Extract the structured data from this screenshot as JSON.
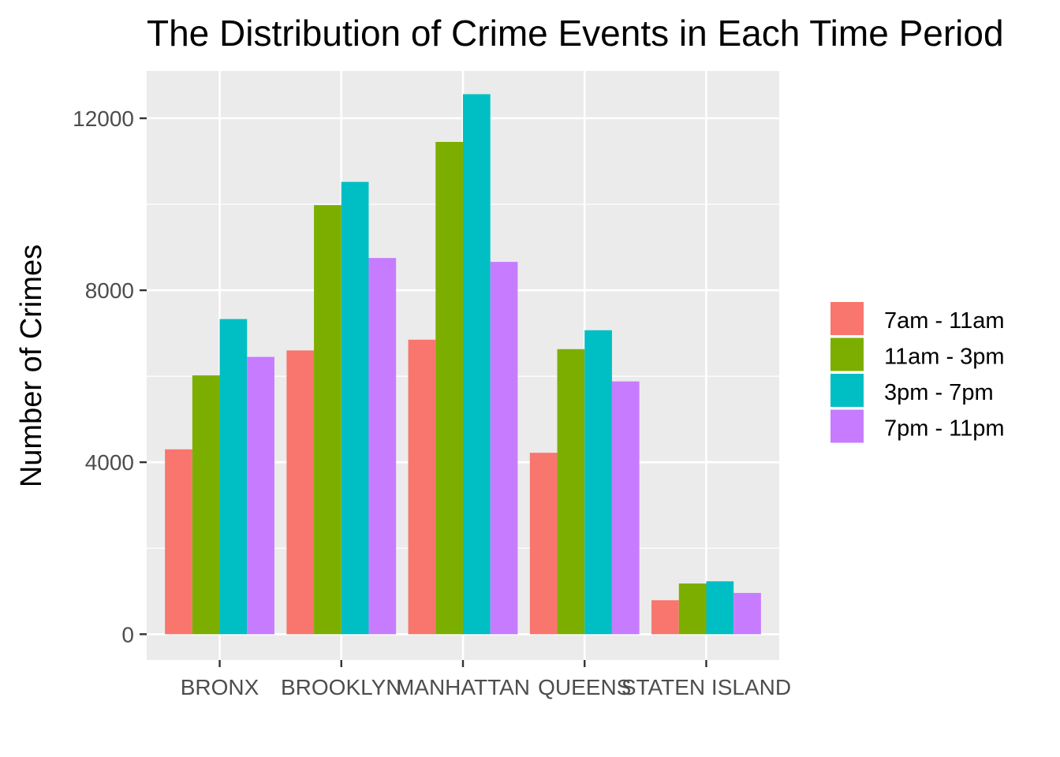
{
  "chart_data": {
    "type": "bar",
    "title": "The Distribution of Crime Events in Each Time Period",
    "xlabel": "",
    "ylabel": "Number of Crimes",
    "categories": [
      "BRONX",
      "BROOKLYN",
      "MANHATTAN",
      "QUEENS",
      "STATEN ISLAND"
    ],
    "series": [
      {
        "name": "7am - 11am",
        "color": "#F8766D",
        "values": [
          4300,
          6600,
          6850,
          4220,
          790
        ]
      },
      {
        "name": "11am - 3pm",
        "color": "#7CAE00",
        "values": [
          6020,
          9980,
          11450,
          6630,
          1180
        ]
      },
      {
        "name": "3pm - 7pm",
        "color": "#00BFC4",
        "values": [
          7330,
          10520,
          12560,
          7070,
          1230
        ]
      },
      {
        "name": "7pm - 11pm",
        "color": "#C77CFF",
        "values": [
          6450,
          8750,
          8660,
          5880,
          960
        ]
      }
    ],
    "yticks": [
      0,
      4000,
      8000,
      12000
    ],
    "ylim": [
      -600,
      13100
    ],
    "grid": true,
    "legend_position": "right",
    "panel_background": "#EBEBEB"
  }
}
